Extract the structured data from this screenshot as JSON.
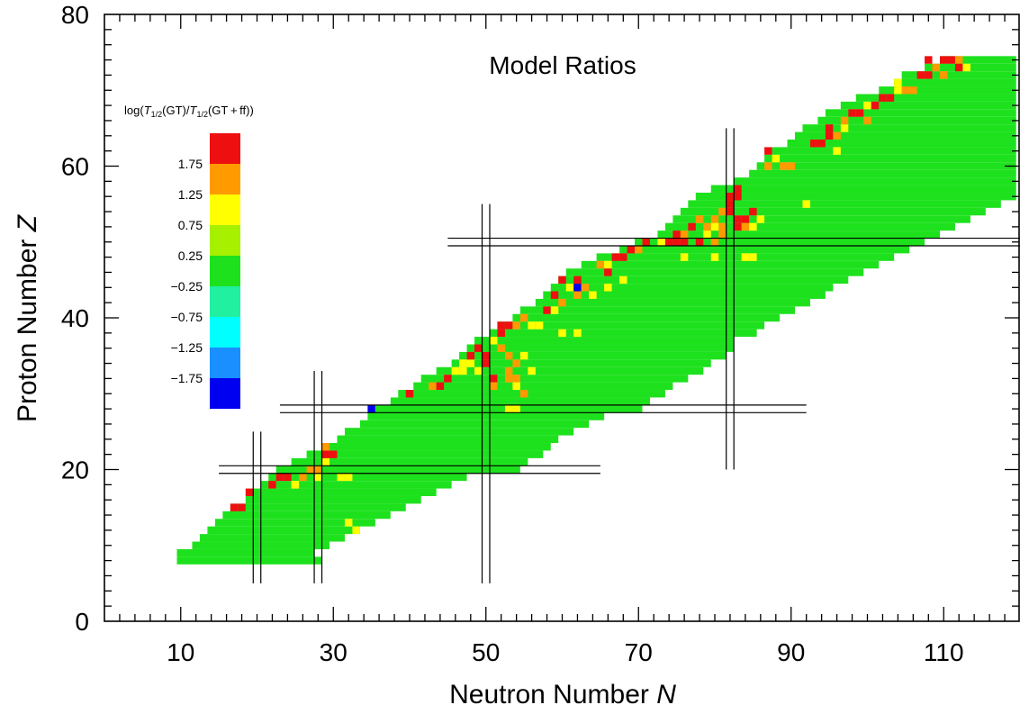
{
  "chart_data": {
    "type": "heatmap",
    "title": "Model Ratios",
    "xlabel": "Neutron Number",
    "xlabel_symbol": "N",
    "ylabel": "Proton Number",
    "ylabel_symbol": "Z",
    "xlim": [
      0,
      120
    ],
    "ylim": [
      0,
      80
    ],
    "x_major_ticks": [
      10,
      30,
      50,
      70,
      90,
      110
    ],
    "y_major_ticks": [
      0,
      20,
      40,
      60,
      80
    ],
    "x_minor_step": 2,
    "y_minor_step": 2,
    "legend": {
      "title_parts": [
        "log(",
        "T",
        "1/2",
        "(GT)/",
        "T",
        "1/2",
        "(GT + ff))"
      ],
      "placement": "left",
      "bins": [
        {
          "label": "1.75",
          "color": "#ee1010"
        },
        {
          "label": "1.25",
          "color": "#ff9a00"
        },
        {
          "label": "0.75",
          "color": "#ffff00"
        },
        {
          "label": "0.25",
          "color": "#a6f000"
        },
        {
          "label": "−0.25",
          "color": "#1ee11e"
        },
        {
          "label": "−0.75",
          "color": "#20f0a0"
        },
        {
          "label": "−1.25",
          "color": "#00ffff"
        },
        {
          "label": "−1.75",
          "color": "#1a8fff"
        },
        {
          "label": "",
          "color": "#0000f0"
        }
      ]
    },
    "background_value": "-0.25..0.25",
    "magic_lines": {
      "vertical": [
        {
          "N": 20,
          "Z_range": [
            5,
            25
          ]
        },
        {
          "N": 28,
          "Z_range": [
            5,
            33
          ]
        },
        {
          "N": 50,
          "Z_range": [
            5,
            55
          ]
        },
        {
          "N": 82,
          "Z_range": [
            20,
            65
          ]
        }
      ],
      "horizontal": [
        {
          "Z": 20,
          "N_range": [
            15,
            65
          ]
        },
        {
          "Z": 28,
          "N_range": [
            23,
            92
          ]
        },
        {
          "Z": 50,
          "N_range": [
            45,
            120
          ]
        }
      ]
    },
    "region_rows": [
      {
        "Z": 8,
        "N": [
          10,
          28
        ]
      },
      {
        "Z": 9,
        "N": [
          10,
          27
        ]
      },
      {
        "Z": 10,
        "N": [
          12,
          29
        ]
      },
      {
        "Z": 11,
        "N": [
          13,
          31
        ]
      },
      {
        "Z": 12,
        "N": [
          14,
          33
        ]
      },
      {
        "Z": 13,
        "N": [
          15,
          35
        ]
      },
      {
        "Z": 14,
        "N": [
          16,
          37
        ]
      },
      {
        "Z": 15,
        "N": [
          17,
          39
        ]
      },
      {
        "Z": 16,
        "N": [
          19,
          41
        ]
      },
      {
        "Z": 17,
        "N": [
          20,
          43
        ]
      },
      {
        "Z": 18,
        "N": [
          21,
          45
        ]
      },
      {
        "Z": 19,
        "N": [
          22,
          47
        ]
      },
      {
        "Z": 20,
        "N": [
          23,
          54
        ]
      },
      {
        "Z": 21,
        "N": [
          25,
          55
        ]
      },
      {
        "Z": 22,
        "N": [
          27,
          57
        ]
      },
      {
        "Z": 23,
        "N": [
          29,
          58
        ]
      },
      {
        "Z": 24,
        "N": [
          31,
          59
        ]
      },
      {
        "Z": 25,
        "N": [
          32,
          61
        ]
      },
      {
        "Z": 26,
        "N": [
          34,
          63
        ]
      },
      {
        "Z": 27,
        "N": [
          35,
          65
        ]
      },
      {
        "Z": 28,
        "N": [
          36,
          70
        ]
      },
      {
        "Z": 29,
        "N": [
          38,
          71
        ]
      },
      {
        "Z": 30,
        "N": [
          39,
          73
        ]
      },
      {
        "Z": 31,
        "N": [
          41,
          74
        ]
      },
      {
        "Z": 32,
        "N": [
          42,
          76
        ]
      },
      {
        "Z": 33,
        "N": [
          44,
          78
        ]
      },
      {
        "Z": 34,
        "N": [
          46,
          79
        ]
      },
      {
        "Z": 35,
        "N": [
          47,
          81
        ]
      },
      {
        "Z": 36,
        "N": [
          48,
          82
        ]
      },
      {
        "Z": 37,
        "N": [
          49,
          82
        ]
      },
      {
        "Z": 38,
        "N": [
          51,
          85
        ]
      },
      {
        "Z": 39,
        "N": [
          52,
          86
        ]
      },
      {
        "Z": 40,
        "N": [
          54,
          88
        ]
      },
      {
        "Z": 41,
        "N": [
          55,
          90
        ]
      },
      {
        "Z": 42,
        "N": [
          57,
          92
        ]
      },
      {
        "Z": 43,
        "N": [
          58,
          94
        ]
      },
      {
        "Z": 44,
        "N": [
          59,
          95
        ]
      },
      {
        "Z": 45,
        "N": [
          60,
          97
        ]
      },
      {
        "Z": 46,
        "N": [
          61,
          99
        ]
      },
      {
        "Z": 47,
        "N": [
          63,
          101
        ]
      },
      {
        "Z": 48,
        "N": [
          65,
          103
        ]
      },
      {
        "Z": 49,
        "N": [
          68,
          105
        ]
      },
      {
        "Z": 50,
        "N": [
          70,
          107
        ]
      },
      {
        "Z": 51,
        "N": [
          73,
          109
        ]
      },
      {
        "Z": 52,
        "N": [
          74,
          111
        ]
      },
      {
        "Z": 53,
        "N": [
          75,
          113
        ]
      },
      {
        "Z": 54,
        "N": [
          76,
          115
        ]
      },
      {
        "Z": 55,
        "N": [
          77,
          117
        ]
      },
      {
        "Z": 56,
        "N": [
          78,
          119
        ]
      },
      {
        "Z": 57,
        "N": [
          80,
          119
        ]
      },
      {
        "Z": 58,
        "N": [
          83,
          119
        ]
      },
      {
        "Z": 59,
        "N": [
          85,
          119
        ]
      },
      {
        "Z": 60,
        "N": [
          86,
          119
        ]
      },
      {
        "Z": 61,
        "N": [
          87,
          119
        ]
      },
      {
        "Z": 62,
        "N": [
          88,
          119
        ]
      },
      {
        "Z": 63,
        "N": [
          90,
          119
        ]
      },
      {
        "Z": 64,
        "N": [
          91,
          119
        ]
      },
      {
        "Z": 65,
        "N": [
          92,
          119
        ]
      },
      {
        "Z": 66,
        "N": [
          94,
          119
        ]
      },
      {
        "Z": 67,
        "N": [
          95,
          119
        ]
      },
      {
        "Z": 68,
        "N": [
          97,
          119
        ]
      },
      {
        "Z": 69,
        "N": [
          99,
          119
        ]
      },
      {
        "Z": 70,
        "N": [
          102,
          119
        ]
      },
      {
        "Z": 71,
        "N": [
          104,
          119
        ]
      },
      {
        "Z": 72,
        "N": [
          105,
          119
        ]
      },
      {
        "Z": 73,
        "N": [
          108,
          119
        ]
      },
      {
        "Z": 74,
        "N": [
          110,
          119
        ]
      }
    ],
    "cells": [
      {
        "N": 17,
        "Z": 15,
        "v": 2.0
      },
      {
        "N": 18,
        "Z": 15,
        "v": 2.0
      },
      {
        "N": 19,
        "Z": 17,
        "v": 1.5
      },
      {
        "N": 22,
        "Z": 18,
        "v": 2.0
      },
      {
        "N": 23,
        "Z": 19,
        "v": 2.0
      },
      {
        "N": 24,
        "Z": 19,
        "v": 2.0
      },
      {
        "N": 25,
        "Z": 18,
        "v": 0.5
      },
      {
        "N": 26,
        "Z": 19,
        "v": 1.0
      },
      {
        "N": 27,
        "Z": 20,
        "v": 1.0
      },
      {
        "N": 28,
        "Z": 20,
        "v": 1.0
      },
      {
        "N": 28,
        "Z": 19,
        "v": 0.5
      },
      {
        "N": 29,
        "Z": 21,
        "v": 0.5
      },
      {
        "N": 29,
        "Z": 22,
        "v": 2.0
      },
      {
        "N": 30,
        "Z": 22,
        "v": 2.0
      },
      {
        "N": 29,
        "Z": 23,
        "v": 1.0
      },
      {
        "N": 31,
        "Z": 19,
        "v": 0.5
      },
      {
        "N": 32,
        "Z": 19,
        "v": 0.5
      },
      {
        "N": 32,
        "Z": 13,
        "v": 0.5
      },
      {
        "N": 33,
        "Z": 12,
        "v": 0.5
      },
      {
        "N": 35,
        "Z": 28,
        "v": -2.0
      },
      {
        "N": 40,
        "Z": 30,
        "v": 2.0
      },
      {
        "N": 43,
        "Z": 31,
        "v": 1.0
      },
      {
        "N": 44,
        "Z": 31,
        "v": 2.0
      },
      {
        "N": 45,
        "Z": 32,
        "v": 2.0
      },
      {
        "N": 46,
        "Z": 33,
        "v": 0.5
      },
      {
        "N": 47,
        "Z": 33,
        "v": 0.5
      },
      {
        "N": 47,
        "Z": 34,
        "v": 0.5
      },
      {
        "N": 48,
        "Z": 34,
        "v": 0.5
      },
      {
        "N": 48,
        "Z": 35,
        "v": 2.0
      },
      {
        "N": 49,
        "Z": 33,
        "v": 0.5
      },
      {
        "N": 49,
        "Z": 36,
        "v": 2.0
      },
      {
        "N": 50,
        "Z": 34,
        "v": 2.0
      },
      {
        "N": 50,
        "Z": 35,
        "v": 2.0
      },
      {
        "N": 51,
        "Z": 32,
        "v": 2.0
      },
      {
        "N": 51,
        "Z": 31,
        "v": 1.0
      },
      {
        "N": 51,
        "Z": 37,
        "v": 0.5
      },
      {
        "N": 52,
        "Z": 39,
        "v": 2.0
      },
      {
        "N": 53,
        "Z": 39,
        "v": 2.0
      },
      {
        "N": 52,
        "Z": 38,
        "v": 1.5
      },
      {
        "N": 52,
        "Z": 36,
        "v": 1.0
      },
      {
        "N": 53,
        "Z": 35,
        "v": 1.0
      },
      {
        "N": 53,
        "Z": 33,
        "v": 1.0
      },
      {
        "N": 53,
        "Z": 32,
        "v": 1.0
      },
      {
        "N": 54,
        "Z": 32,
        "v": 1.0
      },
      {
        "N": 54,
        "Z": 34,
        "v": 1.0
      },
      {
        "N": 54,
        "Z": 31,
        "v": 0.5
      },
      {
        "N": 55,
        "Z": 30,
        "v": 1.0
      },
      {
        "N": 55,
        "Z": 35,
        "v": 0.5
      },
      {
        "N": 56,
        "Z": 33,
        "v": 0.5
      },
      {
        "N": 54,
        "Z": 39,
        "v": 1.0
      },
      {
        "N": 55,
        "Z": 40,
        "v": 1.0
      },
      {
        "N": 53,
        "Z": 28,
        "v": 0.5
      },
      {
        "N": 54,
        "Z": 28,
        "v": 0.5
      },
      {
        "N": 56,
        "Z": 39,
        "v": 0.5
      },
      {
        "N": 57,
        "Z": 39,
        "v": 0.5
      },
      {
        "N": 58,
        "Z": 41,
        "v": 2.0
      },
      {
        "N": 59,
        "Z": 41,
        "v": 0.5
      },
      {
        "N": 59,
        "Z": 43,
        "v": 2.0
      },
      {
        "N": 60,
        "Z": 42,
        "v": 1.0
      },
      {
        "N": 60,
        "Z": 45,
        "v": 2.0
      },
      {
        "N": 61,
        "Z": 44,
        "v": 0.5
      },
      {
        "N": 62,
        "Z": 44,
        "v": -2.0
      },
      {
        "N": 62,
        "Z": 45,
        "v": 2.0
      },
      {
        "N": 63,
        "Z": 44,
        "v": 1.0
      },
      {
        "N": 62,
        "Z": 43,
        "v": 1.0
      },
      {
        "N": 64,
        "Z": 43,
        "v": 0.5
      },
      {
        "N": 65,
        "Z": 47,
        "v": 1.0
      },
      {
        "N": 66,
        "Z": 47,
        "v": 0.5
      },
      {
        "N": 66,
        "Z": 46,
        "v": 1.5
      },
      {
        "N": 67,
        "Z": 48,
        "v": 2.0
      },
      {
        "N": 68,
        "Z": 48,
        "v": 1.5
      },
      {
        "N": 69,
        "Z": 49,
        "v": 2.0
      },
      {
        "N": 70,
        "Z": 49,
        "v": 1.0
      },
      {
        "N": 71,
        "Z": 50,
        "v": 2.0
      },
      {
        "N": 73,
        "Z": 50,
        "v": 0.5
      },
      {
        "N": 74,
        "Z": 50,
        "v": 2.0
      },
      {
        "N": 75,
        "Z": 50,
        "v": 2.0
      },
      {
        "N": 75,
        "Z": 51,
        "v": 2.0
      },
      {
        "N": 76,
        "Z": 50,
        "v": 2.0
      },
      {
        "N": 76,
        "Z": 51,
        "v": 1.0
      },
      {
        "N": 77,
        "Z": 52,
        "v": 2.0
      },
      {
        "N": 78,
        "Z": 53,
        "v": 1.0
      },
      {
        "N": 78,
        "Z": 50,
        "v": 2.0
      },
      {
        "N": 79,
        "Z": 51,
        "v": 0.5
      },
      {
        "N": 80,
        "Z": 53,
        "v": 1.0
      },
      {
        "N": 80,
        "Z": 50,
        "v": 1.0
      },
      {
        "N": 81,
        "Z": 51,
        "v": 1.0
      },
      {
        "N": 81,
        "Z": 54,
        "v": 1.0
      },
      {
        "N": 82,
        "Z": 55,
        "v": 2.0
      },
      {
        "N": 82,
        "Z": 54,
        "v": 1.5
      },
      {
        "N": 82,
        "Z": 56,
        "v": 2.0
      },
      {
        "N": 83,
        "Z": 57,
        "v": 2.0
      },
      {
        "N": 83,
        "Z": 56,
        "v": 2.0
      },
      {
        "N": 83,
        "Z": 53,
        "v": 2.0
      },
      {
        "N": 83,
        "Z": 52,
        "v": 2.0
      },
      {
        "N": 84,
        "Z": 53,
        "v": 1.5
      },
      {
        "N": 84,
        "Z": 52,
        "v": 1.0
      },
      {
        "N": 85,
        "Z": 52,
        "v": 0.5
      },
      {
        "N": 85,
        "Z": 54,
        "v": 2.0
      },
      {
        "N": 86,
        "Z": 53,
        "v": 0.5
      },
      {
        "N": 81,
        "Z": 52,
        "v": 1.0
      },
      {
        "N": 79,
        "Z": 52,
        "v": 1.0
      },
      {
        "N": 80,
        "Z": 52,
        "v": 0.5
      },
      {
        "N": 87,
        "Z": 62,
        "v": 2.0
      },
      {
        "N": 88,
        "Z": 61,
        "v": 0.5
      },
      {
        "N": 87,
        "Z": 60,
        "v": 1.0
      },
      {
        "N": 90,
        "Z": 60,
        "v": 1.0
      },
      {
        "N": 89,
        "Z": 60,
        "v": 1.0
      },
      {
        "N": 93,
        "Z": 63,
        "v": 2.0
      },
      {
        "N": 94,
        "Z": 63,
        "v": 2.0
      },
      {
        "N": 95,
        "Z": 64,
        "v": 2.0
      },
      {
        "N": 96,
        "Z": 64,
        "v": 1.0
      },
      {
        "N": 95,
        "Z": 65,
        "v": 1.5
      },
      {
        "N": 97,
        "Z": 65,
        "v": 0.5
      },
      {
        "N": 98,
        "Z": 67,
        "v": 2.0
      },
      {
        "N": 99,
        "Z": 67,
        "v": 2.0
      },
      {
        "N": 100,
        "Z": 68,
        "v": 0.5
      },
      {
        "N": 97,
        "Z": 66,
        "v": 1.0
      },
      {
        "N": 100,
        "Z": 66,
        "v": 1.0
      },
      {
        "N": 101,
        "Z": 68,
        "v": 2.0
      },
      {
        "N": 102,
        "Z": 69,
        "v": 2.0
      },
      {
        "N": 103,
        "Z": 69,
        "v": 1.5
      },
      {
        "N": 104,
        "Z": 70,
        "v": 0.5
      },
      {
        "N": 105,
        "Z": 70,
        "v": 1.0
      },
      {
        "N": 107,
        "Z": 72,
        "v": 2.0
      },
      {
        "N": 108,
        "Z": 72,
        "v": 1.5
      },
      {
        "N": 109,
        "Z": 73,
        "v": 1.0
      },
      {
        "N": 110,
        "Z": 74,
        "v": 2.0
      },
      {
        "N": 111,
        "Z": 74,
        "v": 2.0
      },
      {
        "N": 112,
        "Z": 74,
        "v": 1.0
      },
      {
        "N": 112,
        "Z": 73,
        "v": 1.5
      },
      {
        "N": 113,
        "Z": 73,
        "v": 0.5
      },
      {
        "N": 108,
        "Z": 74,
        "v": 2.0
      },
      {
        "N": 104,
        "Z": 71,
        "v": 0.5
      },
      {
        "N": 106,
        "Z": 70,
        "v": 1.0
      },
      {
        "N": 110,
        "Z": 72,
        "v": 1.0
      },
      {
        "N": 96,
        "Z": 62,
        "v": 0.5
      },
      {
        "N": 60,
        "Z": 38,
        "v": 0.5
      },
      {
        "N": 62,
        "Z": 38,
        "v": 0.5
      },
      {
        "N": 68,
        "Z": 45,
        "v": 0.5
      },
      {
        "N": 66,
        "Z": 44,
        "v": 0.5
      },
      {
        "N": 76,
        "Z": 48,
        "v": 0.5
      },
      {
        "N": 80,
        "Z": 48,
        "v": 0.5
      },
      {
        "N": 84,
        "Z": 48,
        "v": 0.5
      },
      {
        "N": 85,
        "Z": 48,
        "v": 0.5
      },
      {
        "N": 92,
        "Z": 55,
        "v": 0.5
      }
    ]
  }
}
